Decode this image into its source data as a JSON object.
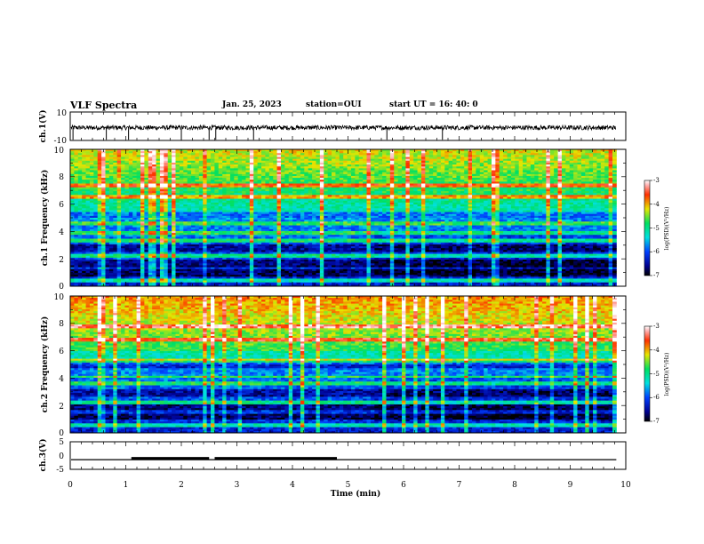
{
  "header": {
    "title": "VLF Spectra",
    "date": "Jan. 25, 2023",
    "station": "station=OUI",
    "start": "start UT =  16: 40: 0"
  },
  "chart_data": [
    {
      "type": "line",
      "ylabel": "ch.1(V)",
      "ylim": [
        -10,
        10
      ],
      "yticks": [
        "10",
        "-10"
      ],
      "baseline": -1,
      "spikes_min": [
        0.05,
        0.65,
        1.05,
        2.0,
        2.5,
        2.62,
        3.3,
        5.7,
        6.7
      ],
      "xlim": [
        0,
        10
      ]
    },
    {
      "type": "heatmap",
      "ylabel": "ch.1 Frequency (kHz)",
      "ylim": [
        0,
        10
      ],
      "yticks": [
        "10",
        "8",
        "6",
        "4",
        "2",
        "0"
      ],
      "xlim": [
        0,
        9.83
      ],
      "colorbar": {
        "label": "log(PSD)(V²/Hz)",
        "range": [
          -7,
          -3
        ],
        "ticks": [
          "-3",
          "-4",
          "-5",
          "-6",
          "-7"
        ]
      },
      "bright_bands_khz": [
        0.4,
        2.2,
        3.3,
        3.9,
        4.6,
        6.5,
        7.4
      ],
      "quiet_bands_khz": [
        1.0,
        1.7,
        2.8,
        5.2
      ]
    },
    {
      "type": "heatmap",
      "ylabel": "ch.2 Frequency (kHz)",
      "ylim": [
        0,
        10
      ],
      "yticks": [
        "10",
        "8",
        "6",
        "4",
        "2",
        "0"
      ],
      "xlim": [
        0,
        9.83
      ],
      "colorbar": {
        "label": "log(PSD)(V²/Hz)",
        "range": [
          -7,
          -3
        ],
        "ticks": [
          "-3",
          "-4",
          "-5",
          "-6",
          "-7"
        ]
      },
      "bright_bands_khz": [
        0.6,
        2.2,
        3.6,
        4.1,
        5.3,
        6.8,
        7.8
      ],
      "quiet_bands_khz": [
        1.2,
        1.9,
        2.9,
        5.0
      ]
    },
    {
      "type": "line",
      "ylabel": "ch.3(V)",
      "ylim": [
        -5,
        5
      ],
      "yticks": [
        "5",
        "0",
        "-5"
      ],
      "baseline": -1.5,
      "pulses_min": [
        [
          1.1,
          2.5
        ],
        [
          2.6,
          4.8
        ]
      ],
      "xlim": [
        0,
        10
      ]
    }
  ],
  "xaxis": {
    "label": "Time  (min)",
    "ticks": [
      "0",
      "1",
      "2",
      "3",
      "4",
      "5",
      "6",
      "7",
      "8",
      "9",
      "10"
    ],
    "range": [
      0,
      10
    ]
  }
}
